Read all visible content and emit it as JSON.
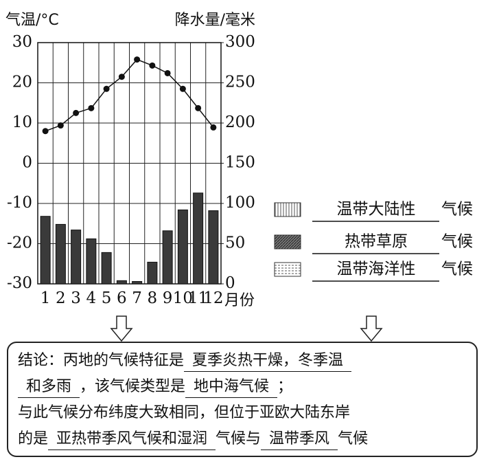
{
  "chart_data": {
    "type": "combo",
    "y_label": "气温/°C",
    "y2_label": "降水量/毫米",
    "x_label": "月份",
    "categories": [
      "1",
      "2",
      "3",
      "4",
      "5",
      "6",
      "7",
      "8",
      "9",
      "10",
      "11",
      "12"
    ],
    "series": [
      {
        "name": "气温",
        "type": "line",
        "axis": "y",
        "color": "#111111",
        "values": [
          8,
          9.4,
          12.5,
          13.7,
          18.5,
          21.5,
          25.8,
          24.3,
          22.4,
          18.5,
          13.7,
          8.9
        ]
      },
      {
        "name": "降水量",
        "type": "bar",
        "axis": "y2",
        "color": "#3a3a3a",
        "values": [
          84,
          74,
          67,
          56,
          39,
          4,
          3,
          27,
          66,
          92,
          113,
          91
        ]
      }
    ],
    "ylim": [
      -30,
      30
    ],
    "yticks": [
      -30,
      -20,
      -10,
      0,
      10,
      20,
      30
    ],
    "y2lim": [
      0,
      300
    ],
    "y2ticks": [
      0,
      50,
      100,
      150,
      200,
      250,
      300
    ],
    "grid": true
  },
  "legend": [
    {
      "answer": "温带大陆性",
      "suffix": "气候"
    },
    {
      "answer": "热带草原",
      "suffix": "气候"
    },
    {
      "answer": "温带海洋性",
      "suffix": "气候"
    }
  ],
  "conclusion": {
    "lines": [
      [
        {
          "text": "结论：丙地的气候特征是"
        },
        {
          "answer": "夏季炎热干燥，冬季温"
        }
      ],
      [
        {
          "answer": "和多雨"
        },
        {
          "text": "，该气候类型是"
        },
        {
          "answer": "地中海气候"
        },
        {
          "text": "；"
        }
      ],
      [
        {
          "text": "与此气候分布纬度大致相同，但位于亚欧大陆东岸"
        }
      ],
      [
        {
          "text": "的是"
        },
        {
          "answer": "亚热带季风气候和湿润"
        },
        {
          "text": "气候与"
        },
        {
          "answer": "温带季风"
        },
        {
          "text": "气候"
        }
      ]
    ]
  }
}
